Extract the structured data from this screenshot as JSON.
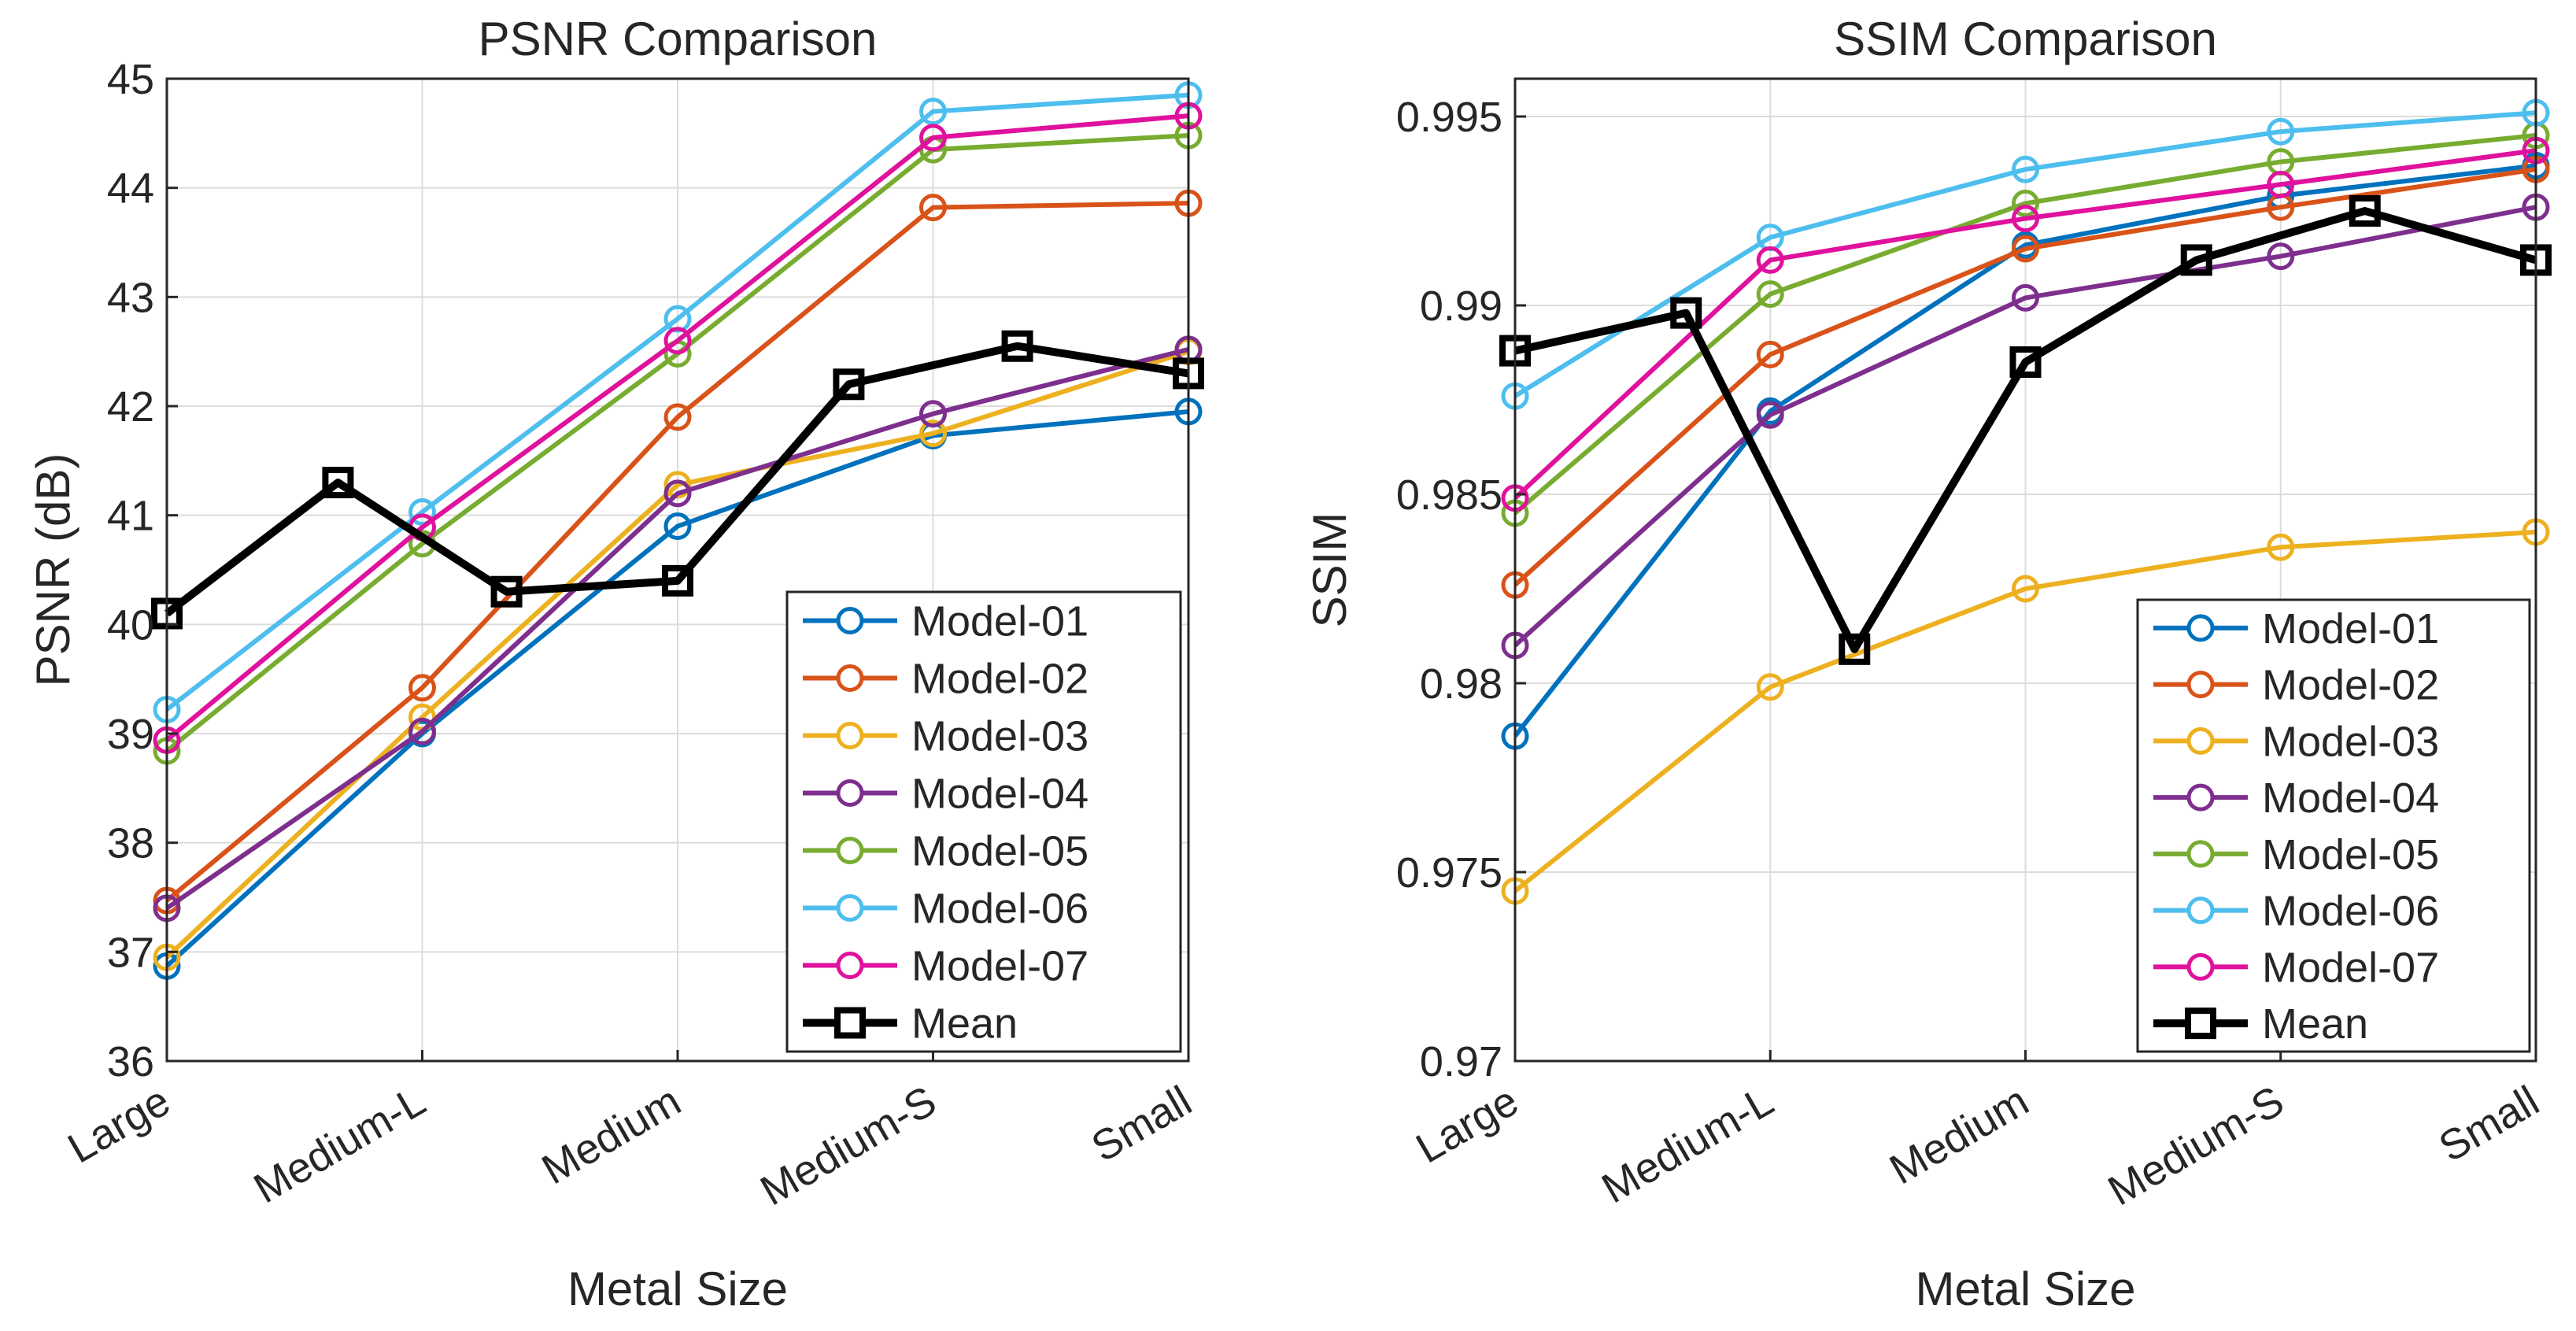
{
  "chart_data": [
    {
      "type": "line",
      "title": "PSNR Comparison",
      "xlabel": "Metal Size",
      "ylabel": "PSNR (dB)",
      "ylim": [
        36,
        45
      ],
      "yticks": [
        "36",
        "37",
        "38",
        "39",
        "40",
        "41",
        "42",
        "43",
        "44",
        "45"
      ],
      "grid": true,
      "legend_location": "bottom-right",
      "categories": [
        "Large",
        "Medium-L",
        "Medium",
        "Medium-S",
        "Small"
      ],
      "series": [
        {
          "name": "Model-01",
          "color": "#0072BD",
          "marker": "circle",
          "x": [
            0,
            1,
            2,
            3,
            4
          ],
          "values": [
            36.87,
            39.0,
            40.9,
            41.73,
            41.95
          ]
        },
        {
          "name": "Model-02",
          "color": "#D95319",
          "marker": "circle",
          "x": [
            0,
            1,
            2,
            3,
            4
          ],
          "values": [
            37.47,
            39.42,
            41.9,
            43.82,
            43.86
          ]
        },
        {
          "name": "Model-03",
          "color": "#EDB120",
          "marker": "circle",
          "x": [
            0,
            1,
            2,
            3,
            4
          ],
          "values": [
            36.95,
            39.15,
            41.28,
            41.75,
            42.5
          ]
        },
        {
          "name": "Model-04",
          "color": "#7E2F8E",
          "marker": "circle",
          "x": [
            0,
            1,
            2,
            3,
            4
          ],
          "values": [
            37.4,
            39.02,
            41.2,
            41.93,
            42.52
          ]
        },
        {
          "name": "Model-05",
          "color": "#77AC30",
          "marker": "circle",
          "x": [
            0,
            1,
            2,
            3,
            4
          ],
          "values": [
            38.84,
            40.74,
            42.48,
            44.35,
            44.48
          ]
        },
        {
          "name": "Model-06",
          "color": "#4DBEEE",
          "marker": "circle",
          "x": [
            0,
            1,
            2,
            3,
            4
          ],
          "values": [
            39.22,
            41.03,
            42.8,
            44.7,
            44.85
          ]
        },
        {
          "name": "Model-07",
          "color": "#E0119D",
          "marker": "circle",
          "x": [
            0,
            1,
            2,
            3,
            4
          ],
          "values": [
            38.94,
            40.89,
            42.6,
            44.46,
            44.66
          ]
        },
        {
          "name": "Mean",
          "color": "#000000",
          "marker": "square",
          "x": [
            0,
            0.67,
            1.33,
            2.0,
            2.67,
            3.33,
            4.0
          ],
          "values": [
            40.1,
            41.3,
            40.3,
            40.4,
            42.2,
            42.55,
            42.3
          ]
        }
      ]
    },
    {
      "type": "line",
      "title": "SSIM Comparison",
      "xlabel": "Metal Size",
      "ylabel": "SSIM",
      "ylim": [
        0.97,
        0.996
      ],
      "yticks": [
        "0.97",
        "0.975",
        "0.98",
        "0.985",
        "0.99",
        "0.995"
      ],
      "grid": true,
      "legend_location": "bottom-right",
      "categories": [
        "Large",
        "Medium-L",
        "Medium",
        "Medium-S",
        "Small"
      ],
      "series": [
        {
          "name": "Model-01",
          "color": "#0072BD",
          "marker": "circle",
          "x": [
            0,
            1,
            2,
            3,
            4
          ],
          "values": [
            0.9786,
            0.9872,
            0.9916,
            0.9929,
            0.9937
          ]
        },
        {
          "name": "Model-02",
          "color": "#D95319",
          "marker": "circle",
          "x": [
            0,
            1,
            2,
            3,
            4
          ],
          "values": [
            0.9826,
            0.9887,
            0.9915,
            0.9926,
            0.9936
          ]
        },
        {
          "name": "Model-03",
          "color": "#EDB120",
          "marker": "circle",
          "x": [
            0,
            1,
            2,
            3,
            4
          ],
          "values": [
            0.9745,
            0.9799,
            0.9825,
            0.9836,
            0.984
          ]
        },
        {
          "name": "Model-04",
          "color": "#7E2F8E",
          "marker": "circle",
          "x": [
            0,
            1,
            2,
            3,
            4
          ],
          "values": [
            0.981,
            0.9871,
            0.9902,
            0.9913,
            0.9926
          ]
        },
        {
          "name": "Model-05",
          "color": "#77AC30",
          "marker": "circle",
          "x": [
            0,
            1,
            2,
            3,
            4
          ],
          "values": [
            0.9845,
            0.9903,
            0.9927,
            0.9938,
            0.9945
          ]
        },
        {
          "name": "Model-06",
          "color": "#4DBEEE",
          "marker": "circle",
          "x": [
            0,
            1,
            2,
            3,
            4
          ],
          "values": [
            0.9876,
            0.9918,
            0.9936,
            0.9946,
            0.9951
          ]
        },
        {
          "name": "Model-07",
          "color": "#E0119D",
          "marker": "circle",
          "x": [
            0,
            1,
            2,
            3,
            4
          ],
          "values": [
            0.9849,
            0.9912,
            0.9923,
            0.9932,
            0.9941
          ]
        },
        {
          "name": "Mean",
          "color": "#000000",
          "marker": "square",
          "x": [
            0,
            0.67,
            1.33,
            2.0,
            2.67,
            3.33,
            4.0
          ],
          "values": [
            0.9888,
            0.9898,
            0.9809,
            0.9885,
            0.9912,
            0.9925,
            0.9912
          ]
        }
      ]
    }
  ]
}
